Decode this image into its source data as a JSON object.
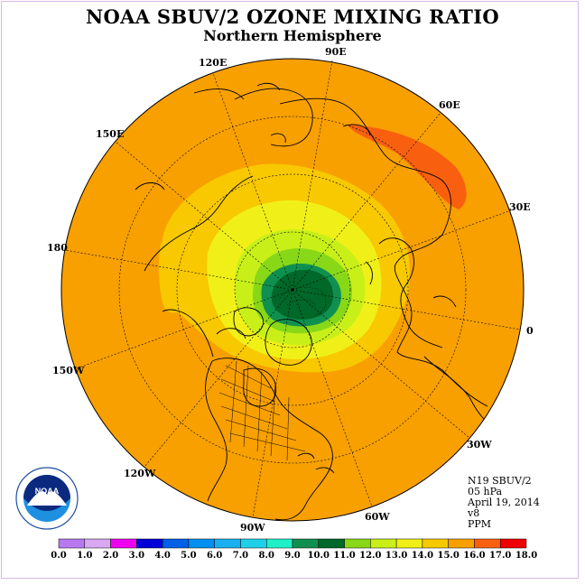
{
  "title": "NOAA SBUV/2 OZONE MIXING RATIO",
  "subtitle": "Northern Hemisphere",
  "longitude_labels": [
    "90E",
    "60E",
    "30E",
    "0",
    "30W",
    "60W",
    "90W",
    "120W",
    "150W",
    "180",
    "150E",
    "120E"
  ],
  "info": {
    "satellite": "N19 SBUV/2",
    "level": "05 hPa",
    "date": "April 19, 2014",
    "version": "v8",
    "units": "PPM"
  },
  "logo_text": "NOAA",
  "colorbar": {
    "labels": [
      "0.0",
      "1.0",
      "2.0",
      "3.0",
      "4.0",
      "5.0",
      "6.0",
      "7.0",
      "8.0",
      "9.0",
      "10.0",
      "11.0",
      "12.0",
      "13.0",
      "14.0",
      "15.0",
      "16.0",
      "17.0",
      "18.0"
    ],
    "colors": [
      "#b879f0",
      "#d8a8f0",
      "#f000f0",
      "#0000d8",
      "#0060e8",
      "#0090f0",
      "#18b0f0",
      "#20d0e8",
      "#20f0c8",
      "#109050",
      "#006828",
      "#88d818",
      "#c8f018",
      "#f0f018",
      "#f8c800",
      "#f8a000",
      "#f86010",
      "#f00000",
      "#986040"
    ]
  },
  "colors": {
    "background_field": "#f8a000",
    "outer_ring": "#f8c800",
    "pole_min": "#006828"
  }
}
